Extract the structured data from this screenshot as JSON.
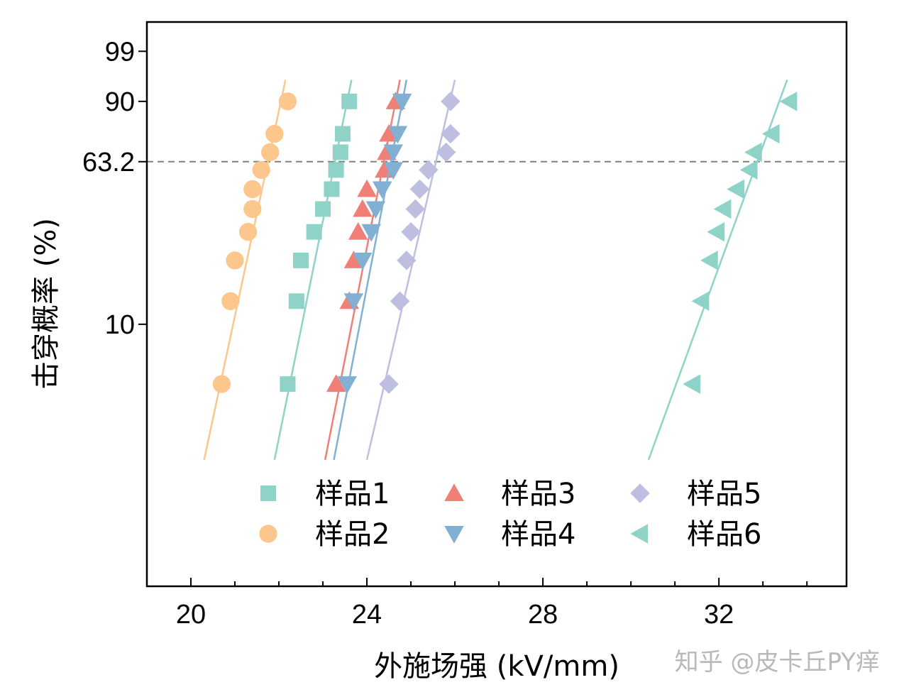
{
  "chart_data": {
    "type": "scatter",
    "title": "",
    "xlabel": "外施场强 (kV/mm)",
    "ylabel": "击穿概率 (%)",
    "xlim": [
      19,
      34.9
    ],
    "x_ticks": [
      20,
      24,
      28,
      32
    ],
    "y_scale": "weibull",
    "ylim": [
      0.28,
      99.9
    ],
    "y_ticks": [
      10,
      63.2,
      90,
      99
    ],
    "y_tick_labels": [
      "10",
      "63.2",
      "90",
      "99"
    ],
    "reference_line": {
      "y": 63.2,
      "style": "dashed",
      "color": "#808080"
    },
    "legend_position": "bottom-center",
    "grid": false,
    "series": [
      {
        "name": "样品1",
        "marker": "square",
        "color": "#8fd3c8",
        "x": [
          22.2,
          22.4,
          22.5,
          22.8,
          23.0,
          23.2,
          23.3,
          23.4,
          23.45,
          23.6
        ],
        "y": [
          4.5,
          13.5,
          22.5,
          31.5,
          40.5,
          49.5,
          59.0,
          68.0,
          77.0,
          90.0
        ],
        "fit": {
          "x": [
            21.9,
            23.65
          ],
          "y": [
            1.6,
            95.5
          ]
        }
      },
      {
        "name": "样品2",
        "marker": "circle",
        "color": "#fcc78c",
        "x": [
          20.7,
          20.9,
          21.0,
          21.3,
          21.4,
          21.4,
          21.6,
          21.8,
          21.9,
          22.2
        ],
        "y": [
          4.5,
          13.5,
          22.5,
          31.5,
          40.5,
          49.5,
          59.0,
          68.0,
          77.0,
          90.0
        ],
        "fit": {
          "x": [
            20.3,
            22.15
          ],
          "y": [
            1.6,
            95.5
          ]
        }
      },
      {
        "name": "样品3",
        "marker": "triangle-up",
        "color": "#f08077",
        "x": [
          23.3,
          23.6,
          23.7,
          23.8,
          23.9,
          24.0,
          24.4,
          24.45,
          24.5,
          24.65
        ],
        "y": [
          4.5,
          13.5,
          22.5,
          31.5,
          40.5,
          49.5,
          59.0,
          68.0,
          77.0,
          90.0
        ],
        "fit": {
          "x": [
            23.05,
            24.75
          ],
          "y": [
            1.6,
            95.5
          ]
        }
      },
      {
        "name": "样品4",
        "marker": "triangle-down",
        "color": "#82b0d2",
        "x": [
          23.55,
          23.7,
          23.9,
          24.1,
          24.2,
          24.35,
          24.6,
          24.6,
          24.7,
          24.8
        ],
        "y": [
          4.5,
          13.5,
          22.5,
          31.5,
          40.5,
          49.5,
          59.0,
          68.0,
          77.0,
          90.0
        ],
        "fit": {
          "x": [
            23.25,
            24.9
          ],
          "y": [
            1.6,
            95.5
          ]
        }
      },
      {
        "name": "样品5",
        "marker": "diamond",
        "color": "#bebfe0",
        "x": [
          24.5,
          24.75,
          24.9,
          25.0,
          25.1,
          25.2,
          25.4,
          25.8,
          25.9,
          25.9
        ],
        "y": [
          4.5,
          13.5,
          22.5,
          31.5,
          40.5,
          49.5,
          59.0,
          68.0,
          77.0,
          90.0
        ],
        "fit": {
          "x": [
            24.0,
            26.0
          ],
          "y": [
            1.6,
            95.5
          ]
        }
      },
      {
        "name": "样品6",
        "marker": "triangle-left",
        "color": "#8fd3c8",
        "x": [
          31.4,
          31.6,
          31.8,
          31.95,
          32.1,
          32.4,
          32.7,
          32.8,
          33.2,
          33.6
        ],
        "y": [
          4.5,
          13.5,
          22.5,
          31.5,
          40.5,
          49.5,
          59.0,
          68.0,
          77.0,
          90.0
        ],
        "fit": {
          "x": [
            30.4,
            33.55
          ],
          "y": [
            1.6,
            95.5
          ]
        }
      }
    ]
  },
  "watermark": {
    "text": "知乎 @皮卡丘PY痒"
  }
}
